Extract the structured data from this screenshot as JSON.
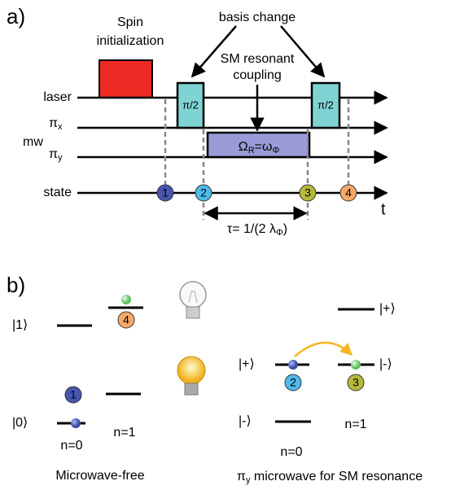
{
  "panel_a": {
    "label": "a)",
    "spin_init": [
      "Spin",
      "initialization"
    ],
    "basis_change": "basis change",
    "sm_coupling": [
      "SM resonant",
      "coupling"
    ],
    "rows": {
      "laser": "laser",
      "mw": "mw",
      "pi_x": {
        "symbol": "π",
        "sub": "x"
      },
      "pi_y": {
        "symbol": "π",
        "sub": "y"
      },
      "state": "state"
    },
    "pulse_labels": [
      "π/2",
      "π/2"
    ],
    "omega": {
      "a": "Ω",
      "a_sub": "R",
      "eq": "=ω",
      "b_sub": "Φ"
    },
    "steps": [
      "1",
      "2",
      "3",
      "4"
    ],
    "time_axis": "t",
    "tau": {
      "text": "τ= 1/(2 λ",
      "sub": "Φ",
      "end": ")"
    }
  },
  "panel_b": {
    "label": "b)",
    "left": {
      "ket1": "|1⟩",
      "ket0": "|0⟩",
      "n0": "n=0",
      "n1": "n=1",
      "step4": "4",
      "step1": "1",
      "caption": "Microwave-free"
    },
    "right": {
      "ket_plus_top": "|+⟩",
      "ket_plus": "|+⟩",
      "ket_minus_right": "|-⟩",
      "ket_minus": "|-⟩",
      "n0": "n=0",
      "n1": "n=1",
      "step2": "2",
      "step3": "3",
      "caption": {
        "symbol": "π",
        "sub": "y",
        "text": " microwave for SM resonance"
      }
    }
  }
}
